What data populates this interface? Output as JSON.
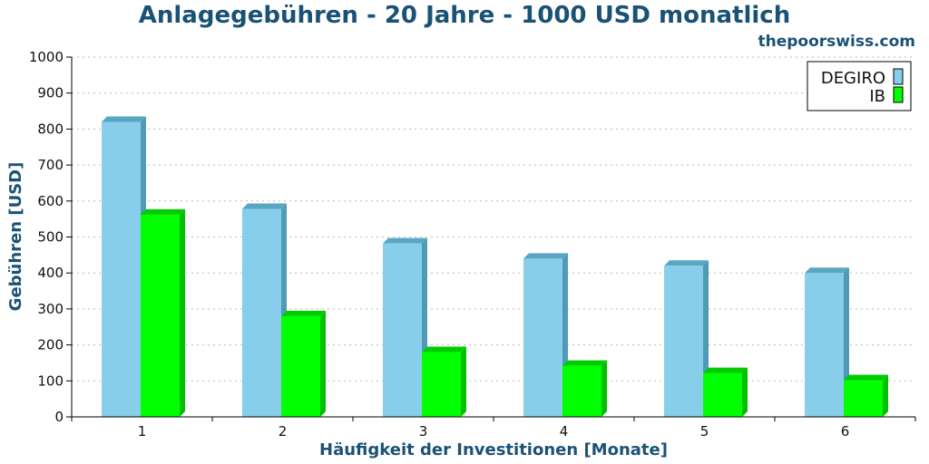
{
  "chart_data": {
    "type": "bar",
    "title": "Anlagegebühren - 20 Jahre - 1000 USD monatlich",
    "subtitle": "thepoorswiss.com",
    "xlabel": "Häufigkeit der Investitionen [Monate]",
    "ylabel": "Gebühren [USD]",
    "categories": [
      "1",
      "2",
      "3",
      "4",
      "5",
      "6"
    ],
    "ylim": [
      0,
      1000
    ],
    "yticks": [
      0,
      100,
      200,
      300,
      400,
      500,
      600,
      700,
      800,
      900,
      1000
    ],
    "ytick_labels": [
      "0",
      "100",
      "200",
      "300",
      "400",
      "500",
      "600",
      "700",
      "800",
      "900",
      "1000"
    ],
    "grid": true,
    "legend_position": "top-right",
    "series": [
      {
        "name": "DEGIRO",
        "values": [
          820,
          578,
          482,
          440,
          420,
          400
        ],
        "color": "#87ceeb"
      },
      {
        "name": "IB",
        "values": [
          562,
          280,
          180,
          142,
          122,
          102
        ],
        "color": "#00ff00"
      }
    ]
  }
}
